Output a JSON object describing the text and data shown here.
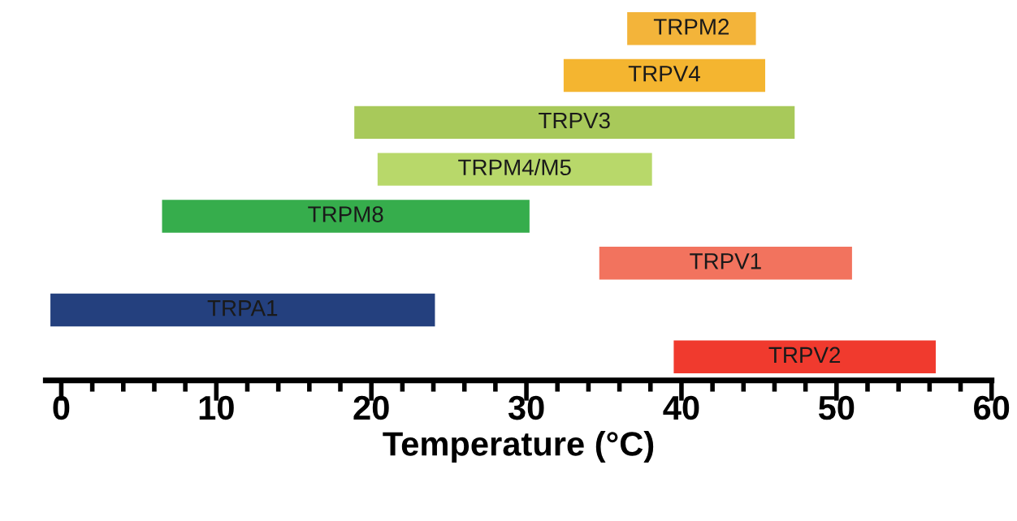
{
  "chart_data": {
    "type": "bar",
    "orientation": "horizontal",
    "xlabel": "Temperature (°C)",
    "categories": [
      null,
      null,
      null,
      null,
      null,
      null,
      null,
      null
    ],
    "colors": [
      "#f3b43a",
      "#f4b530",
      "#a8c95a",
      "#b8d86a",
      "#36ad4c",
      "#f2735e",
      "#24407e",
      "#f03a2e"
    ],
    "base": [
      36.5,
      32.4,
      18.9,
      20.4,
      6.5,
      34.7,
      -0.7,
      39.5
    ],
    "values": [
      8.3,
      13.0,
      28.4,
      17.7,
      23.7,
      16.3,
      24.8,
      16.9
    ],
    "value_labels": [
      "TRPM2",
      "TRPV4",
      "TRPV3",
      "TRPM4/M5",
      "TRPM8",
      "TRPV1",
      "TRPA1",
      "TRPV2"
    ],
    "grid": false,
    "legend": false,
    "xlim": [
      -1,
      60
    ],
    "xticks": [
      0,
      {
        "value": 2,
        "label": null
      },
      {
        "value": 4,
        "label": null
      },
      {
        "value": 6,
        "label": null
      },
      {
        "value": 8,
        "label": null
      },
      10,
      {
        "value": 12,
        "label": null
      },
      {
        "value": 14,
        "label": null
      },
      {
        "value": 16,
        "label": null
      },
      {
        "value": 18,
        "label": null
      },
      20,
      {
        "value": 22,
        "label": null
      },
      {
        "value": 24,
        "label": null
      },
      {
        "value": 26,
        "label": null
      },
      {
        "value": 28,
        "label": null
      },
      30,
      {
        "value": 32,
        "label": null
      },
      {
        "value": 34,
        "label": null
      },
      {
        "value": 36,
        "label": null
      },
      {
        "value": 38,
        "label": null
      },
      40,
      {
        "value": 42,
        "label": null
      },
      {
        "value": 44,
        "label": null
      },
      {
        "value": 46,
        "label": null
      },
      {
        "value": 48,
        "label": null
      },
      50,
      {
        "value": 52,
        "label": null
      },
      {
        "value": 54,
        "label": null
      },
      {
        "value": 56,
        "label": null
      },
      {
        "value": 58,
        "label": null
      },
      60
    ],
    "tick_labels": "x"
  }
}
